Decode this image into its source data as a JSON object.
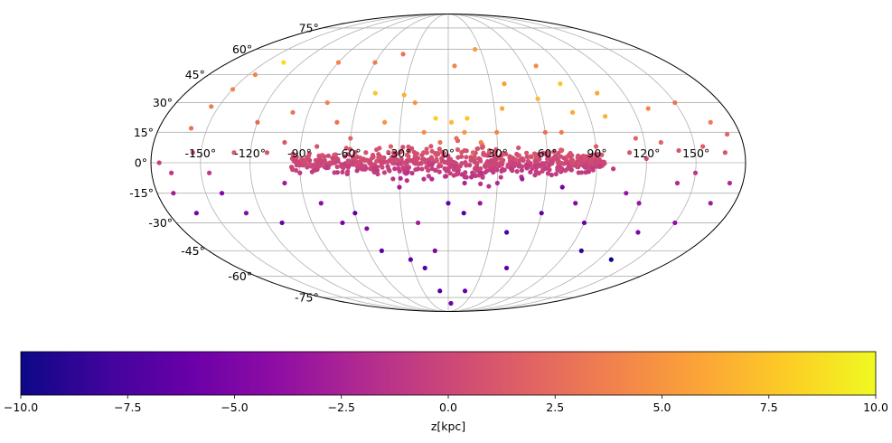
{
  "chart_data": {
    "type": "scatter",
    "projection": "mollweide",
    "title": "",
    "coordinates": "galactic longitude l (deg) vs latitude b (deg)",
    "longitude_tick_labels": [
      "-150°",
      "-120°",
      "-90°",
      "-60°",
      "-30°",
      "0°",
      "30°",
      "60°",
      "90°",
      "120°",
      "150°"
    ],
    "latitude_tick_labels": [
      "75°",
      "60°",
      "45°",
      "30°",
      "15°",
      "0°",
      "-15°",
      "-30°",
      "-45°",
      "-60°",
      "-75°"
    ],
    "longitude_ticks": [
      -150,
      -120,
      -90,
      -60,
      -30,
      0,
      30,
      60,
      90,
      120,
      150
    ],
    "latitude_ticks": [
      75,
      60,
      45,
      30,
      15,
      0,
      -15,
      -30,
      -45,
      -60,
      -75
    ],
    "xlim": [
      -180,
      180
    ],
    "ylim": [
      -90,
      90
    ],
    "grid": true,
    "colorbar": {
      "label": "z[kpc]",
      "range": [
        -10.0,
        10.0
      ],
      "ticks": [
        -10.0,
        -7.5,
        -5.0,
        -2.5,
        0.0,
        2.5,
        5.0,
        7.5,
        10.0
      ],
      "tick_labels": [
        "−10.0",
        "−7.5",
        "−5.0",
        "−2.5",
        "0.0",
        "2.5",
        "5.0",
        "7.5",
        "10.0"
      ],
      "colormap": "plasma",
      "orientation": "horizontal",
      "placement": "bottom"
    },
    "series": [
      {
        "name": "sources",
        "points": [
          {
            "l": 60,
            "b": 2,
            "z": 0.5
          },
          {
            "l": 40,
            "b": 40,
            "z": 5.5
          },
          {
            "l": 50,
            "b": 3,
            "z": 0.8
          },
          {
            "l": 45,
            "b": 2,
            "z": 0.3
          },
          {
            "l": -20,
            "b": 1,
            "z": 0.2
          },
          {
            "l": -8,
            "b": 22,
            "z": 8.0
          },
          {
            "l": 2,
            "b": 20,
            "z": 7.0
          },
          {
            "l": 10,
            "b": 15,
            "z": 5.0
          },
          {
            "l": -40,
            "b": 20,
            "z": 5.0
          },
          {
            "l": 12,
            "b": 22,
            "z": 7.5
          },
          {
            "l": 20,
            "b": 10,
            "z": 4.0
          },
          {
            "l": 35,
            "b": 27,
            "z": 6.0
          },
          {
            "l": 60,
            "b": 32,
            "z": 7.0
          },
          {
            "l": 80,
            "b": 40,
            "z": 7.5
          },
          {
            "l": 102,
            "b": 35,
            "z": 6.0
          },
          {
            "l": 100,
            "b": 23,
            "z": 6.5
          },
          {
            "l": 130,
            "b": 27,
            "z": 4.0
          },
          {
            "l": 150,
            "b": 30,
            "z": 3.0
          },
          {
            "l": 168,
            "b": 5,
            "z": 1.0
          },
          {
            "l": 165,
            "b": 20,
            "z": 3.5
          },
          {
            "l": 172,
            "b": 14,
            "z": 2.0
          },
          {
            "l": 130,
            "b": 10,
            "z": 2.0
          },
          {
            "l": 140,
            "b": 6,
            "z": 1.0
          },
          {
            "l": 70,
            "b": 50,
            "z": 4.5
          },
          {
            "l": 25,
            "b": 60,
            "z": 5.5
          },
          {
            "l": 5,
            "b": 50,
            "z": 4.0
          },
          {
            "l": -40,
            "b": 57,
            "z": 3.0
          },
          {
            "l": -60,
            "b": 52,
            "z": 3.5
          },
          {
            "l": -90,
            "b": 52,
            "z": 4.0
          },
          {
            "l": -135,
            "b": 52,
            "z": 8.5
          },
          {
            "l": -145,
            "b": 45,
            "z": 4.0
          },
          {
            "l": -150,
            "b": 37,
            "z": 4.0
          },
          {
            "l": -160,
            "b": 17,
            "z": 3.0
          },
          {
            "l": -155,
            "b": 28,
            "z": 3.5
          },
          {
            "l": -175,
            "b": 0,
            "z": -0.5
          },
          {
            "l": -168,
            "b": -5,
            "z": -1.0
          },
          {
            "l": -120,
            "b": 20,
            "z": 2.5
          },
          {
            "l": -100,
            "b": 10,
            "z": 1.0
          },
          {
            "l": -80,
            "b": 8,
            "z": 0.8
          },
          {
            "l": -70,
            "b": 20,
            "z": 3.0
          },
          {
            "l": -22,
            "b": 30,
            "z": 5.0
          },
          {
            "l": -50,
            "b": 35,
            "z": 7.5
          },
          {
            "l": -30,
            "b": 34,
            "z": 6.5
          },
          {
            "l": -60,
            "b": 12,
            "z": 2.0
          },
          {
            "l": -170,
            "b": -15,
            "z": -3.0
          },
          {
            "l": -162,
            "b": -25,
            "z": -5.5
          },
          {
            "l": -140,
            "b": -15,
            "z": -5.0
          },
          {
            "l": -130,
            "b": -25,
            "z": -4.5
          },
          {
            "l": -110,
            "b": -30,
            "z": -6.0
          },
          {
            "l": -100,
            "b": -10,
            "z": -3.0
          },
          {
            "l": -80,
            "b": -20,
            "z": -4.0
          },
          {
            "l": -70,
            "b": -30,
            "z": -5.5
          },
          {
            "l": -60,
            "b": -25,
            "z": -6.5
          },
          {
            "l": -55,
            "b": -33,
            "z": -4.5
          },
          {
            "l": -50,
            "b": -45,
            "z": -6.5
          },
          {
            "l": -30,
            "b": -50,
            "z": -6.5
          },
          {
            "l": -20,
            "b": -55,
            "z": -7.0
          },
          {
            "l": -10,
            "b": -45,
            "z": -5.0
          },
          {
            "l": -20,
            "b": -30,
            "z": -3.0
          },
          {
            "l": 0,
            "b": -20,
            "z": -6.0
          },
          {
            "l": 10,
            "b": -25,
            "z": -7.0
          },
          {
            "l": 20,
            "b": -20,
            "z": -3.5
          },
          {
            "l": 30,
            "b": -10,
            "z": -2.0
          },
          {
            "l": 40,
            "b": -35,
            "z": -7.5
          },
          {
            "l": 60,
            "b": -25,
            "z": -6.5
          },
          {
            "l": 80,
            "b": -20,
            "z": -4.5
          },
          {
            "l": 90,
            "b": -30,
            "z": -6.0
          },
          {
            "l": 110,
            "b": -15,
            "z": -3.5
          },
          {
            "l": 130,
            "b": -35,
            "z": -5.0
          },
          {
            "l": 150,
            "b": -30,
            "z": -4.0
          },
          {
            "l": 165,
            "b": -20,
            "z": -3.0
          },
          {
            "l": 172,
            "b": -10,
            "z": -2.0
          },
          {
            "l": 130,
            "b": -50,
            "z": -10.0
          },
          {
            "l": 100,
            "b": -45,
            "z": -8.5
          },
          {
            "l": 50,
            "b": -55,
            "z": -6.5
          },
          {
            "l": 20,
            "b": -70,
            "z": -6.0
          },
          {
            "l": 5,
            "b": -80,
            "z": -5.5
          },
          {
            "l": -10,
            "b": -70,
            "z": -7.0
          },
          {
            "l": 140,
            "b": -10,
            "z": -2.0
          },
          {
            "l": 120,
            "b": -20,
            "z": -3.5
          },
          {
            "l": 70,
            "b": -12,
            "z": -5.5
          },
          {
            "l": 45,
            "b": -8,
            "z": -3.0
          },
          {
            "l": -30,
            "b": -12,
            "z": -3.0
          },
          {
            "l": -10,
            "b": -8,
            "z": -2.0
          },
          {
            "l": 10,
            "b": -10,
            "z": -2.5
          },
          {
            "l": 15,
            "b": 5,
            "z": 2.0
          },
          {
            "l": -5,
            "b": 10,
            "z": 3.0
          },
          {
            "l": -15,
            "b": 15,
            "z": 4.5
          },
          {
            "l": 5,
            "b": 12,
            "z": 2.5
          },
          {
            "l": 25,
            "b": 6,
            "z": 1.5
          },
          {
            "l": -35,
            "b": 8,
            "z": 1.5
          },
          {
            "l": -50,
            "b": 5,
            "z": 1.0
          },
          {
            "l": 30,
            "b": 15,
            "z": 4.0
          },
          {
            "l": 70,
            "b": 15,
            "z": 3.5
          },
          {
            "l": 90,
            "b": 8,
            "z": 1.5
          },
          {
            "l": 110,
            "b": 5,
            "z": 1.0
          },
          {
            "l": 115,
            "b": 12,
            "z": 2.0
          },
          {
            "l": -110,
            "b": 5,
            "z": 1.0
          },
          {
            "l": -90,
            "b": -5,
            "z": -1.0
          },
          {
            "l": -75,
            "b": 3,
            "z": 0.5
          },
          {
            "l": 100,
            "b": -3,
            "z": -1.0
          },
          {
            "l": 120,
            "b": 2,
            "z": 0.5
          },
          {
            "l": 150,
            "b": -5,
            "z": -1.0
          },
          {
            "l": 155,
            "b": 8,
            "z": 1.5
          },
          {
            "l": -130,
            "b": 5,
            "z": 1.0
          },
          {
            "l": -145,
            "b": -5,
            "z": -1.0
          },
          {
            "l": -155,
            "b": 5,
            "z": 1.0
          },
          {
            "l": 80,
            "b": 25,
            "z": 6.0
          },
          {
            "l": -80,
            "b": 30,
            "z": 4.0
          },
          {
            "l": -100,
            "b": 25,
            "z": 3.0
          },
          {
            "l": 60,
            "b": 15,
            "z": 3.0
          },
          {
            "l": -15,
            "b": 5,
            "z": 1.0
          },
          {
            "l": 8,
            "b": 3,
            "z": 0.5
          },
          {
            "l": 38,
            "b": -3,
            "z": -0.8
          },
          {
            "l": -45,
            "b": -3,
            "z": -0.8
          },
          {
            "l": -25,
            "b": -5,
            "z": -1.5
          },
          {
            "l": 20,
            "b": -5,
            "z": -1.5
          }
        ],
        "band": {
          "l_range": [
            -95,
            95
          ],
          "b_sigma": 4,
          "z_scale": 0.3,
          "approx_count": 650
        }
      }
    ]
  }
}
